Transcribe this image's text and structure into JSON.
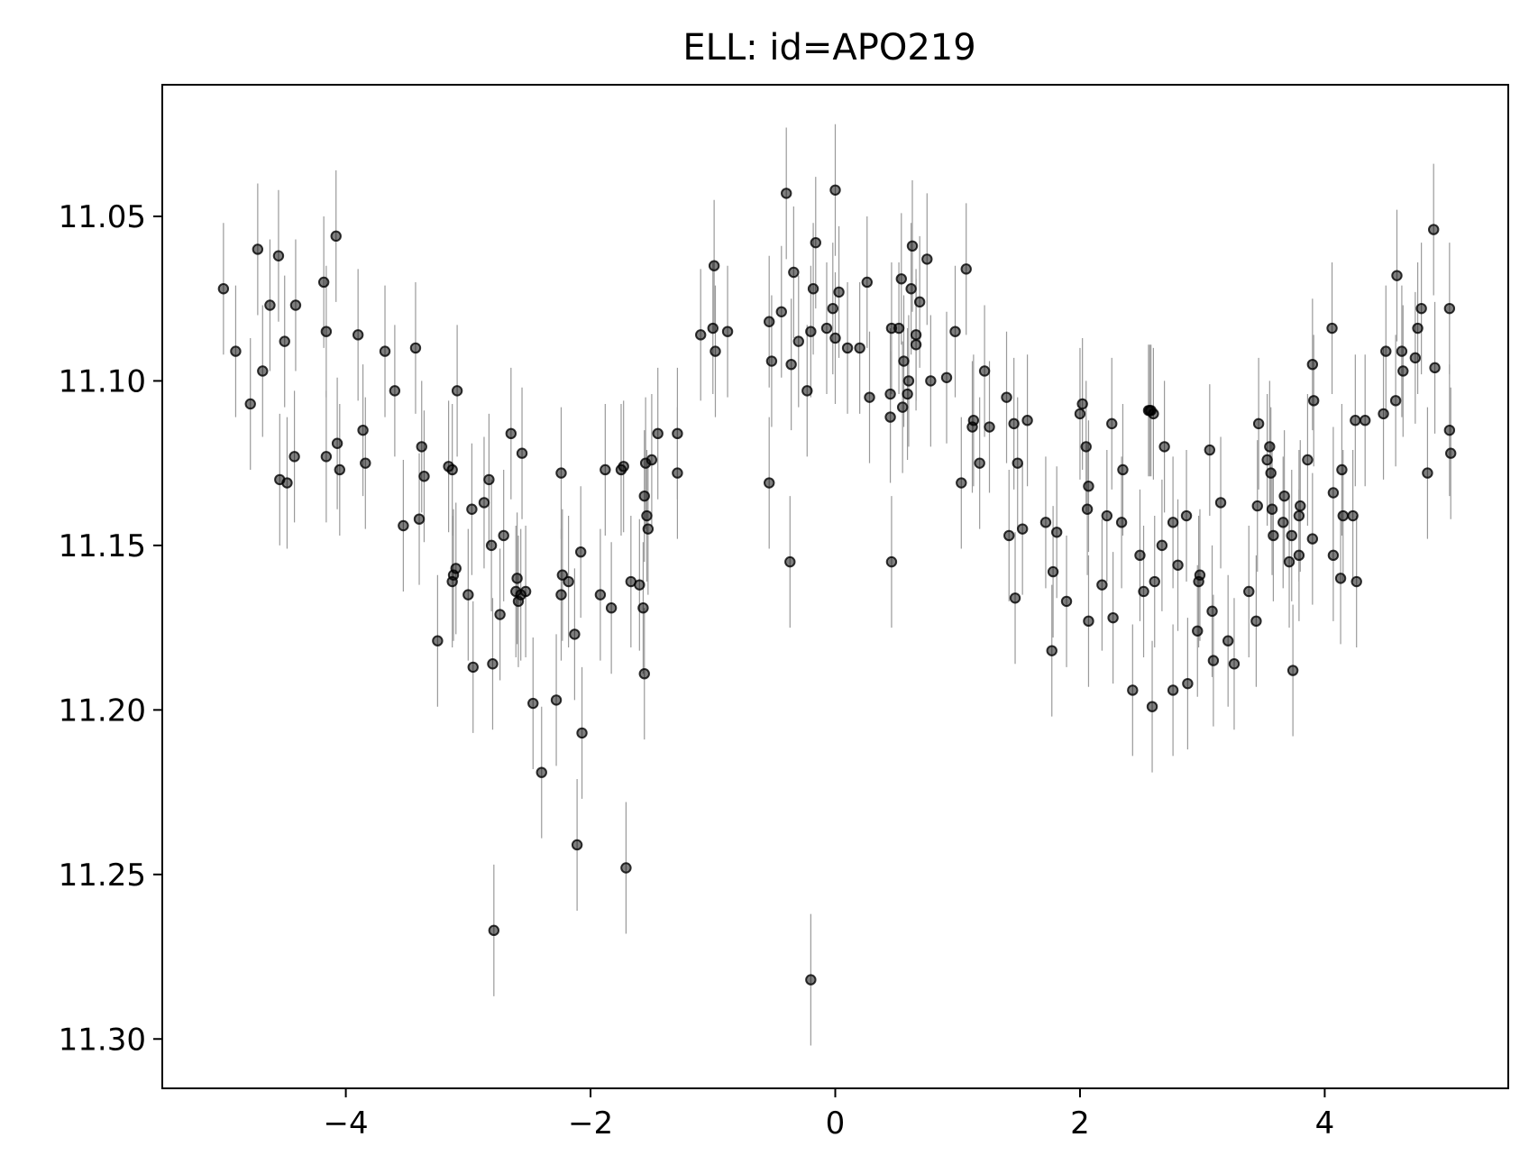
{
  "chart_data": {
    "type": "scatter",
    "title": "ELL: id=APO219",
    "xlabel": "",
    "ylabel": "",
    "xlim": [
      -5.5,
      5.5
    ],
    "ylim": [
      11.315,
      11.01
    ],
    "y_inverted": true,
    "grid": false,
    "x_ticks": [
      {
        "value": -4,
        "label": "−4"
      },
      {
        "value": -2,
        "label": "−2"
      },
      {
        "value": 0,
        "label": "0"
      },
      {
        "value": 2,
        "label": "2"
      },
      {
        "value": 4,
        "label": "4"
      }
    ],
    "y_ticks": [
      {
        "value": 11.05,
        "label": "11.05"
      },
      {
        "value": 11.1,
        "label": "11.10"
      },
      {
        "value": 11.15,
        "label": "11.15"
      },
      {
        "value": 11.2,
        "label": "11.20"
      },
      {
        "value": 11.25,
        "label": "11.25"
      },
      {
        "value": 11.3,
        "label": "11.30"
      }
    ],
    "marker_color": "#000000",
    "errorbar_color": "#9a9a9a",
    "error": 0.02,
    "points": [
      [
        -5.0,
        11.072
      ],
      [
        -4.9,
        11.091
      ],
      [
        -4.78,
        11.107
      ],
      [
        -4.72,
        11.06
      ],
      [
        -4.68,
        11.097
      ],
      [
        -4.62,
        11.077
      ],
      [
        -4.55,
        11.062
      ],
      [
        -4.54,
        11.13
      ],
      [
        -4.5,
        11.088
      ],
      [
        -4.48,
        11.131
      ],
      [
        -4.42,
        11.123
      ],
      [
        -4.41,
        11.077
      ],
      [
        -4.18,
        11.07
      ],
      [
        -4.16,
        11.085
      ],
      [
        -4.16,
        11.123
      ],
      [
        -4.08,
        11.056
      ],
      [
        -4.07,
        11.119
      ],
      [
        -4.05,
        11.127
      ],
      [
        -3.9,
        11.086
      ],
      [
        -3.86,
        11.115
      ],
      [
        -3.84,
        11.125
      ],
      [
        -3.68,
        11.091
      ],
      [
        -3.6,
        11.103
      ],
      [
        -3.53,
        11.144
      ],
      [
        -3.43,
        11.09
      ],
      [
        -3.4,
        11.142
      ],
      [
        -3.38,
        11.12
      ],
      [
        -3.36,
        11.129
      ],
      [
        -3.25,
        11.179
      ],
      [
        -3.16,
        11.126
      ],
      [
        -3.13,
        11.127
      ],
      [
        -3.13,
        11.161
      ],
      [
        -3.12,
        11.159
      ],
      [
        -3.1,
        11.157
      ],
      [
        -3.09,
        11.103
      ],
      [
        -3.0,
        11.165
      ],
      [
        -2.97,
        11.139
      ],
      [
        -2.96,
        11.187
      ],
      [
        -2.87,
        11.137
      ],
      [
        -2.83,
        11.13
      ],
      [
        -2.81,
        11.15
      ],
      [
        -2.8,
        11.186
      ],
      [
        -2.79,
        11.267
      ],
      [
        -2.74,
        11.171
      ],
      [
        -2.71,
        11.147
      ],
      [
        -2.65,
        11.116
      ],
      [
        -2.61,
        11.164
      ],
      [
        -2.6,
        11.16
      ],
      [
        -2.59,
        11.167
      ],
      [
        -2.57,
        11.165
      ],
      [
        -2.56,
        11.122
      ],
      [
        -2.53,
        11.164
      ],
      [
        -2.47,
        11.198
      ],
      [
        -2.4,
        11.219
      ],
      [
        -2.28,
        11.197
      ],
      [
        -2.24,
        11.128
      ],
      [
        -2.24,
        11.165
      ],
      [
        -2.23,
        11.159
      ],
      [
        -2.18,
        11.161
      ],
      [
        -2.13,
        11.177
      ],
      [
        -2.11,
        11.241
      ],
      [
        -2.08,
        11.152
      ],
      [
        -2.07,
        11.207
      ],
      [
        -1.92,
        11.165
      ],
      [
        -1.88,
        11.127
      ],
      [
        -1.83,
        11.169
      ],
      [
        -1.75,
        11.127
      ],
      [
        -1.73,
        11.126
      ],
      [
        -1.71,
        11.248
      ],
      [
        -1.67,
        11.161
      ],
      [
        -1.6,
        11.162
      ],
      [
        -1.57,
        11.169
      ],
      [
        -1.56,
        11.189
      ],
      [
        -1.56,
        11.135
      ],
      [
        -1.55,
        11.125
      ],
      [
        -1.54,
        11.141
      ],
      [
        -1.53,
        11.145
      ],
      [
        -1.5,
        11.124
      ],
      [
        -1.45,
        11.116
      ],
      [
        -1.29,
        11.116
      ],
      [
        -1.29,
        11.128
      ],
      [
        -1.1,
        11.086
      ],
      [
        -1.0,
        11.084
      ],
      [
        -0.99,
        11.065
      ],
      [
        -0.98,
        11.091
      ],
      [
        -0.88,
        11.085
      ],
      [
        -0.54,
        11.131
      ],
      [
        -0.54,
        11.082
      ],
      [
        -0.52,
        11.094
      ],
      [
        -0.44,
        11.079
      ],
      [
        -0.4,
        11.043
      ],
      [
        -0.37,
        11.155
      ],
      [
        -0.36,
        11.095
      ],
      [
        -0.34,
        11.067
      ],
      [
        -0.3,
        11.088
      ],
      [
        -0.23,
        11.103
      ],
      [
        -0.2,
        11.282
      ],
      [
        -0.2,
        11.085
      ],
      [
        -0.18,
        11.072
      ],
      [
        -0.16,
        11.058
      ],
      [
        -0.07,
        11.084
      ],
      [
        -0.02,
        11.078
      ],
      [
        0.0,
        11.087
      ],
      [
        0.0,
        11.042
      ],
      [
        0.03,
        11.073
      ],
      [
        0.1,
        11.09
      ],
      [
        0.2,
        11.09
      ],
      [
        0.26,
        11.07
      ],
      [
        0.28,
        11.105
      ],
      [
        0.45,
        11.104
      ],
      [
        0.45,
        11.111
      ],
      [
        0.46,
        11.084
      ],
      [
        0.46,
        11.155
      ],
      [
        0.52,
        11.084
      ],
      [
        0.54,
        11.069
      ],
      [
        0.55,
        11.108
      ],
      [
        0.56,
        11.094
      ],
      [
        0.59,
        11.104
      ],
      [
        0.6,
        11.1
      ],
      [
        0.62,
        11.072
      ],
      [
        0.63,
        11.059
      ],
      [
        0.66,
        11.089
      ],
      [
        0.66,
        11.086
      ],
      [
        0.69,
        11.076
      ],
      [
        0.75,
        11.063
      ],
      [
        0.78,
        11.1
      ],
      [
        0.91,
        11.099
      ],
      [
        0.98,
        11.085
      ],
      [
        1.03,
        11.131
      ],
      [
        1.07,
        11.066
      ],
      [
        1.12,
        11.114
      ],
      [
        1.13,
        11.112
      ],
      [
        1.18,
        11.125
      ],
      [
        1.22,
        11.097
      ],
      [
        1.26,
        11.114
      ],
      [
        1.4,
        11.105
      ],
      [
        1.42,
        11.147
      ],
      [
        1.46,
        11.113
      ],
      [
        1.47,
        11.166
      ],
      [
        1.49,
        11.125
      ],
      [
        1.53,
        11.145
      ],
      [
        1.57,
        11.112
      ],
      [
        1.72,
        11.143
      ],
      [
        1.77,
        11.182
      ],
      [
        1.78,
        11.158
      ],
      [
        1.81,
        11.146
      ],
      [
        1.89,
        11.167
      ],
      [
        2.0,
        11.11
      ],
      [
        2.02,
        11.107
      ],
      [
        2.05,
        11.12
      ],
      [
        2.06,
        11.139
      ],
      [
        2.07,
        11.132
      ],
      [
        2.07,
        11.173
      ],
      [
        2.18,
        11.162
      ],
      [
        2.22,
        11.141
      ],
      [
        2.26,
        11.113
      ],
      [
        2.27,
        11.172
      ],
      [
        2.34,
        11.143
      ],
      [
        2.35,
        11.127
      ],
      [
        2.43,
        11.194
      ],
      [
        2.49,
        11.153
      ],
      [
        2.52,
        11.164
      ],
      [
        2.56,
        11.109
      ],
      [
        2.57,
        11.109
      ],
      [
        2.58,
        11.109
      ],
      [
        2.59,
        11.199
      ],
      [
        2.6,
        11.11
      ],
      [
        2.61,
        11.161
      ],
      [
        2.67,
        11.15
      ],
      [
        2.69,
        11.12
      ],
      [
        2.76,
        11.194
      ],
      [
        2.76,
        11.143
      ],
      [
        2.8,
        11.156
      ],
      [
        2.87,
        11.141
      ],
      [
        2.88,
        11.192
      ],
      [
        2.96,
        11.176
      ],
      [
        2.97,
        11.161
      ],
      [
        2.98,
        11.159
      ],
      [
        3.06,
        11.121
      ],
      [
        3.08,
        11.17
      ],
      [
        3.09,
        11.185
      ],
      [
        3.15,
        11.137
      ],
      [
        3.21,
        11.179
      ],
      [
        3.26,
        11.186
      ],
      [
        3.38,
        11.164
      ],
      [
        3.44,
        11.173
      ],
      [
        3.45,
        11.138
      ],
      [
        3.46,
        11.113
      ],
      [
        3.53,
        11.124
      ],
      [
        3.55,
        11.12
      ],
      [
        3.56,
        11.128
      ],
      [
        3.57,
        11.139
      ],
      [
        3.58,
        11.147
      ],
      [
        3.66,
        11.143
      ],
      [
        3.67,
        11.135
      ],
      [
        3.71,
        11.155
      ],
      [
        3.73,
        11.147
      ],
      [
        3.74,
        11.188
      ],
      [
        3.79,
        11.153
      ],
      [
        3.79,
        11.141
      ],
      [
        3.8,
        11.138
      ],
      [
        3.86,
        11.124
      ],
      [
        3.9,
        11.148
      ],
      [
        3.9,
        11.095
      ],
      [
        3.91,
        11.106
      ],
      [
        4.06,
        11.084
      ],
      [
        4.07,
        11.134
      ],
      [
        4.07,
        11.153
      ],
      [
        4.13,
        11.16
      ],
      [
        4.14,
        11.127
      ],
      [
        4.15,
        11.141
      ],
      [
        4.23,
        11.141
      ],
      [
        4.25,
        11.112
      ],
      [
        4.26,
        11.161
      ],
      [
        4.33,
        11.112
      ],
      [
        4.48,
        11.11
      ],
      [
        4.5,
        11.091
      ],
      [
        4.58,
        11.106
      ],
      [
        4.59,
        11.068
      ],
      [
        4.63,
        11.091
      ],
      [
        4.64,
        11.097
      ],
      [
        4.74,
        11.093
      ],
      [
        4.76,
        11.084
      ],
      [
        4.79,
        11.078
      ],
      [
        4.84,
        11.128
      ],
      [
        4.89,
        11.054
      ],
      [
        4.9,
        11.096
      ],
      [
        5.02,
        11.078
      ],
      [
        5.02,
        11.115
      ],
      [
        5.03,
        11.122
      ]
    ]
  }
}
